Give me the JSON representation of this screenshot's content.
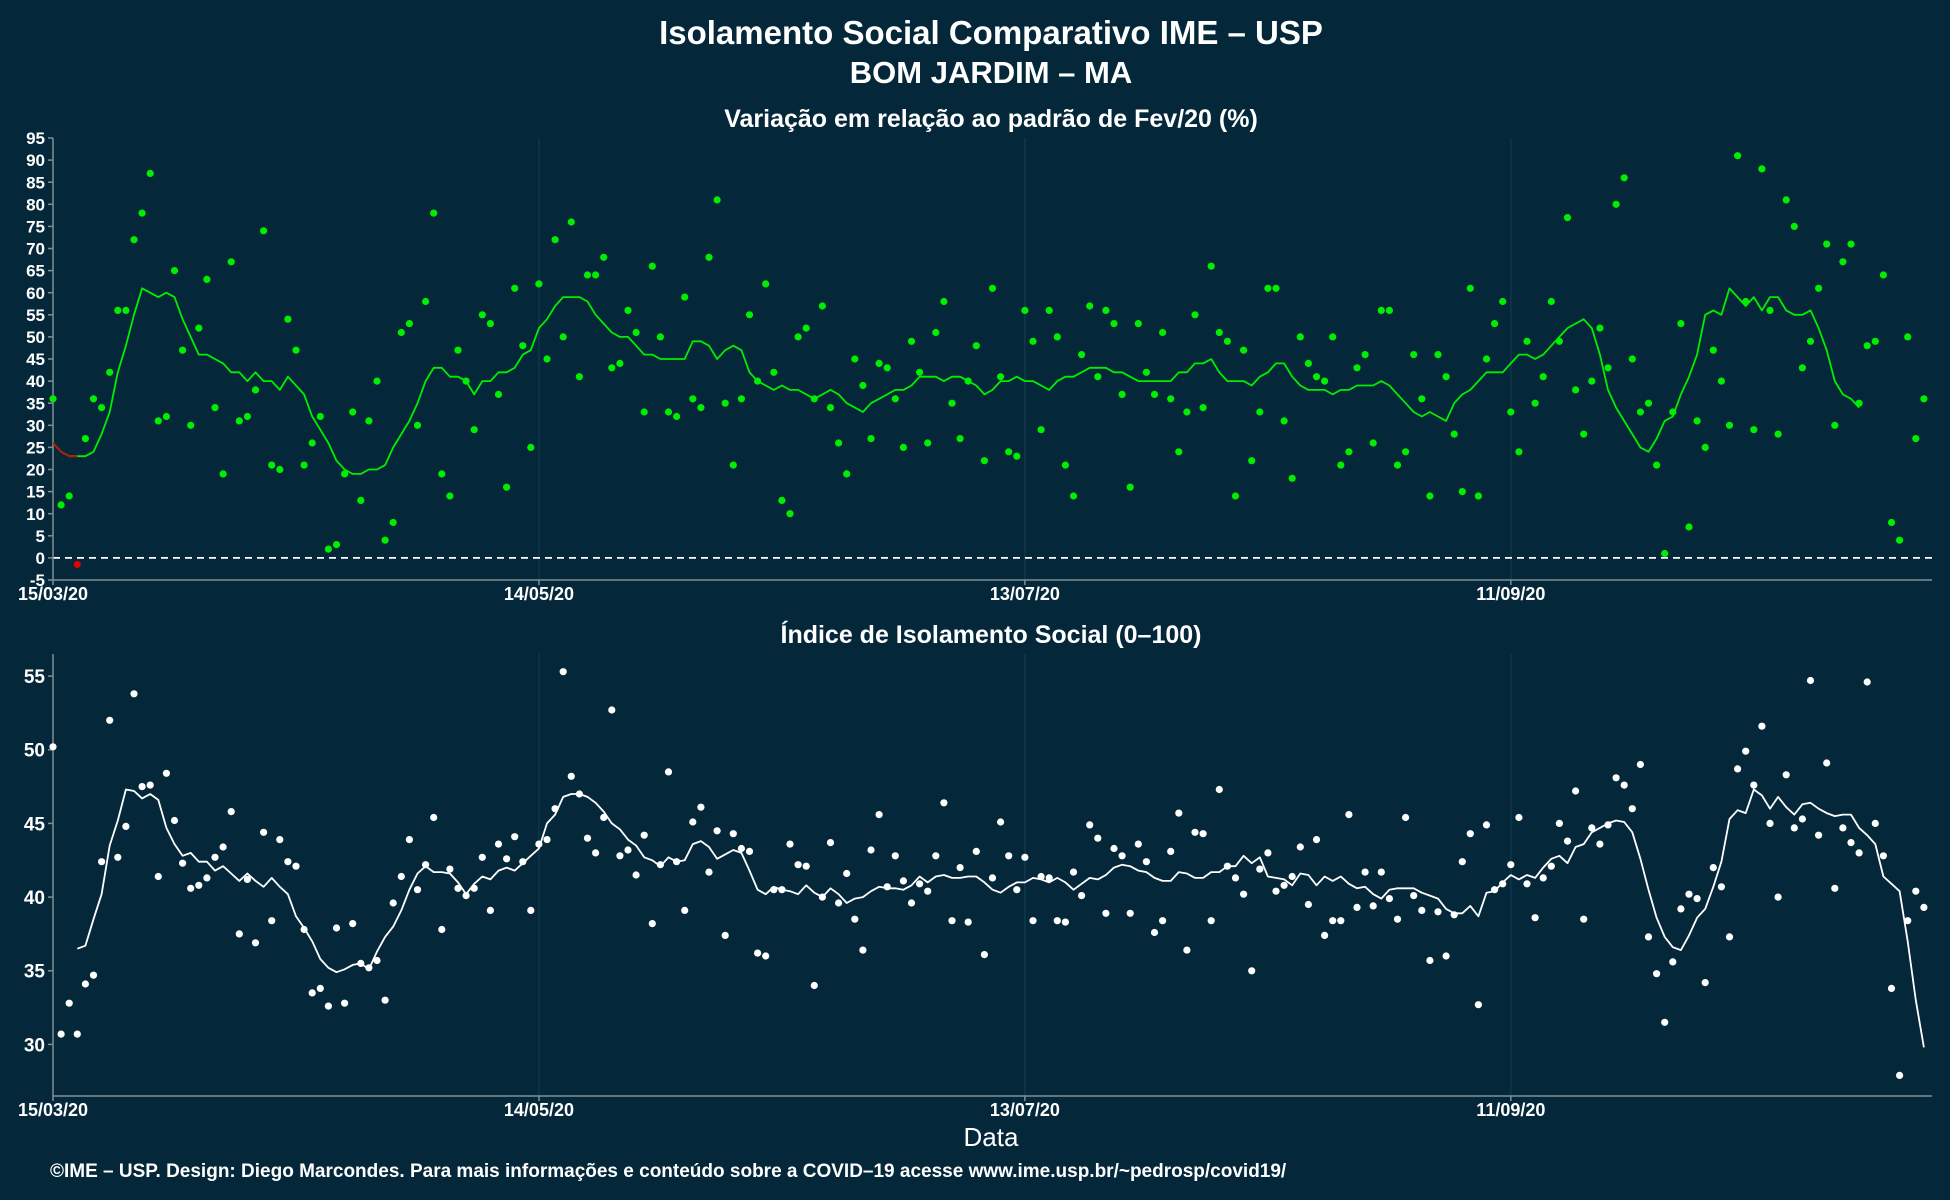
{
  "title_line1": "Isolamento Social Comparativo IME – USP",
  "title_line2": "BOM JARDIM – MA",
  "xlabel": "Data",
  "footer": "©IME – USP. Design: Diego Marcondes. Para mais informações e conteúdo sobre a COVID–19 acesse www.ime.usp.br/~pedrosp/covid19/",
  "colors": {
    "background": "#04283a",
    "green": "#00ee00",
    "red": "#e00000",
    "white": "#ffffff",
    "axis": "#7f8f96",
    "grid": "#123b4e"
  },
  "chart_data": [
    {
      "type": "scatter",
      "title": "Variação em relação ao padrão de Fev/20 (%)",
      "x_start": "15/03/20",
      "x_ticks": [
        "15/03/20",
        "14/05/20",
        "13/07/20",
        "11/09/20"
      ],
      "x_tick_days": [
        0,
        60,
        120,
        180
      ],
      "x_range_days": [
        0,
        232
      ],
      "ylim": [
        -5,
        95
      ],
      "y_ticks": [
        -5,
        0,
        5,
        10,
        15,
        20,
        25,
        30,
        35,
        40,
        45,
        50,
        55,
        60,
        65,
        70,
        75,
        80,
        85,
        90,
        95
      ],
      "reference_line": 0,
      "grid": true,
      "series": [
        {
          "kind": "points",
          "values": [
            36,
            12,
            14,
            -1.5,
            27,
            36,
            34,
            42,
            56,
            56,
            72,
            78,
            87,
            31,
            32,
            65,
            47,
            30,
            52,
            63,
            34,
            19,
            67,
            31,
            32,
            38,
            74,
            21,
            20,
            54,
            47,
            21,
            26,
            32,
            2,
            3,
            19,
            33,
            13,
            31,
            40,
            4,
            8,
            51,
            53,
            30,
            58,
            78,
            19,
            14,
            47,
            40,
            29,
            55,
            53,
            37,
            16,
            61,
            48,
            25,
            62,
            45,
            72,
            50,
            76,
            41,
            64,
            64,
            68,
            43,
            44,
            56,
            51,
            33,
            66,
            50,
            33,
            32,
            59,
            36,
            34,
            68,
            81,
            35,
            21,
            36,
            55,
            40,
            62,
            42,
            13,
            10,
            50,
            52,
            36,
            57,
            34,
            26,
            19,
            45,
            39,
            27,
            44,
            43,
            36,
            25,
            49,
            42,
            26,
            51,
            58,
            35,
            27,
            40,
            48,
            22,
            61,
            41,
            24,
            23,
            56,
            49,
            29,
            56,
            50,
            21,
            14,
            46,
            57,
            41,
            56,
            53,
            37,
            16,
            53,
            42,
            37,
            51,
            36,
            24,
            33,
            55,
            34,
            66,
            51,
            49,
            14,
            47,
            22,
            33,
            61,
            61,
            31,
            18,
            50,
            44,
            41,
            40,
            50,
            21,
            24,
            43,
            46,
            26,
            56,
            56,
            21,
            24,
            46,
            36,
            14,
            46,
            41,
            28,
            15,
            61,
            14,
            45,
            53,
            58,
            33,
            24,
            49,
            35,
            41,
            58,
            49,
            77,
            38,
            28,
            40,
            52,
            43,
            80,
            86,
            45,
            33,
            35,
            21,
            1,
            33,
            53,
            7,
            31,
            25,
            47,
            40,
            30,
            91,
            58,
            29,
            88,
            56,
            28,
            81,
            75,
            43,
            49,
            61,
            71,
            30,
            67,
            71,
            35,
            48,
            49,
            64,
            8,
            4,
            50,
            27,
            36
          ],
          "first_values_red": [
            -1.5
          ],
          "color": "#00ee00"
        },
        {
          "kind": "moving-average-line",
          "values": [
            26,
            24,
            23,
            23,
            23,
            24,
            28,
            33,
            42,
            48,
            55,
            61,
            60,
            59,
            60,
            59,
            54,
            50,
            46,
            46,
            45,
            44,
            42,
            42,
            40,
            42,
            40,
            40,
            38,
            41,
            39,
            37,
            32,
            29,
            26,
            22,
            20,
            19,
            19,
            20,
            20,
            21,
            25,
            28,
            31,
            35,
            40,
            43,
            43,
            41,
            41,
            40,
            37,
            40,
            40,
            42,
            42,
            43,
            46,
            47,
            52,
            54,
            57,
            59,
            59,
            59,
            58,
            55,
            53,
            51,
            50,
            50,
            48,
            46,
            46,
            45,
            45,
            45,
            45,
            49,
            49,
            48,
            45,
            47,
            48,
            47,
            42,
            40,
            39,
            38,
            39,
            38,
            38,
            37,
            36,
            37,
            38,
            37,
            35,
            34,
            33,
            35,
            36,
            37,
            38,
            38,
            39,
            41,
            41,
            41,
            40,
            41,
            41,
            40,
            39,
            37,
            38,
            40,
            40,
            41,
            40,
            40,
            39,
            38,
            40,
            41,
            41,
            42,
            43,
            43,
            43,
            42,
            42,
            41,
            40,
            40,
            40,
            40,
            40,
            42,
            42,
            44,
            44,
            45,
            42,
            40,
            40,
            40,
            39,
            41,
            42,
            44,
            44,
            41,
            39,
            38,
            38,
            38,
            37,
            38,
            38,
            39,
            39,
            39,
            40,
            39,
            37,
            35,
            33,
            32,
            33,
            32,
            31,
            35,
            37,
            38,
            40,
            42,
            42,
            42,
            44,
            46,
            46,
            45,
            46,
            48,
            50,
            52,
            53,
            54,
            52,
            46,
            38,
            34,
            31,
            28,
            25,
            24,
            27,
            31,
            32,
            37,
            41,
            46,
            55,
            56,
            55,
            61,
            59,
            57,
            59,
            56,
            59,
            59,
            56,
            55,
            55,
            56,
            52,
            47,
            40,
            37,
            36,
            34
          ],
          "color": "#00ee00"
        }
      ]
    },
    {
      "type": "scatter",
      "title": "Índice de Isolamento Social (0–100)",
      "x_ticks": [
        "15/03/20",
        "14/05/20",
        "13/07/20",
        "11/09/20"
      ],
      "x_tick_days": [
        0,
        60,
        120,
        180
      ],
      "x_range_days": [
        0,
        232
      ],
      "ylim": [
        26.5,
        56.5
      ],
      "y_ticks": [
        30,
        35,
        40,
        45,
        50,
        55
      ],
      "grid": true,
      "series": [
        {
          "kind": "points",
          "values": [
            50.2,
            30.7,
            32.8,
            30.7,
            34.1,
            34.7,
            42.4,
            52.0,
            42.7,
            44.8,
            53.8,
            47.5,
            47.6,
            41.4,
            48.4,
            45.2,
            42.3,
            40.6,
            40.8,
            41.3,
            42.7,
            43.4,
            45.8,
            37.5,
            41.2,
            36.9,
            44.4,
            38.4,
            43.9,
            42.4,
            42.1,
            37.8,
            33.5,
            33.8,
            32.6,
            37.9,
            32.8,
            38.2,
            35.5,
            35.2,
            35.7,
            33.0,
            39.6,
            41.4,
            43.9,
            40.5,
            42.2,
            45.4,
            37.8,
            41.9,
            40.6,
            40.1,
            40.6,
            42.7,
            39.1,
            43.6,
            42.6,
            44.1,
            42.4,
            39.1,
            43.6,
            43.9,
            46.0,
            55.3,
            48.2,
            47.0,
            44.0,
            43.0,
            45.4,
            52.7,
            42.8,
            43.2,
            41.5,
            44.2,
            38.2,
            42.2,
            48.5,
            42.4,
            39.1,
            45.1,
            46.1,
            41.7,
            44.5,
            37.4,
            44.3,
            43.3,
            43.1,
            36.2,
            36.0,
            40.5,
            40.5,
            43.6,
            42.2,
            42.1,
            34.0,
            40.0,
            43.7,
            39.6,
            41.6,
            38.5,
            36.4,
            43.2,
            45.6,
            40.7,
            42.8,
            41.1,
            39.6,
            40.9,
            40.4,
            42.8,
            46.4,
            38.4,
            42.0,
            38.3,
            43.1,
            36.1,
            41.3,
            45.1,
            42.8,
            40.5,
            42.7,
            38.4,
            41.4,
            41.3,
            38.4,
            38.3,
            41.7,
            40.1,
            44.9,
            44.0,
            38.9,
            43.3,
            42.8,
            38.9,
            43.6,
            42.4,
            37.6,
            38.4,
            43.1,
            45.7,
            36.4,
            44.4,
            44.3,
            38.4,
            47.3,
            42.1,
            41.3,
            40.2,
            35.0,
            41.9,
            43.0,
            40.4,
            40.8,
            41.4,
            43.4,
            39.5,
            43.9,
            37.4,
            38.4,
            38.4,
            45.6,
            39.3,
            41.7,
            39.4,
            41.7,
            39.9,
            38.5,
            45.4,
            40.1,
            39.1,
            35.7,
            39.0,
            36.0,
            38.8,
            42.4,
            44.3,
            32.7,
            44.9,
            40.5,
            40.9,
            42.2,
            45.4,
            40.9,
            38.6,
            41.3,
            42.1,
            45.0,
            43.8,
            47.2,
            38.5,
            44.7,
            43.6,
            44.9,
            48.1,
            47.6,
            46.0,
            49.0,
            37.3,
            34.8,
            31.5,
            35.6,
            39.2,
            40.2,
            39.9,
            34.2,
            42.0,
            40.7,
            37.3,
            48.7,
            49.9,
            47.6,
            51.6,
            45.0,
            40.0,
            48.3,
            44.7,
            45.3,
            54.7,
            44.2,
            49.1,
            40.6,
            44.7,
            43.7,
            43.0,
            54.6,
            45.0,
            42.8,
            33.8,
            27.9,
            38.4,
            40.4,
            39.3
          ],
          "color": "#ffffff"
        },
        {
          "kind": "moving-average-line",
          "values": [
            36.5,
            36.7,
            38.5,
            40.2,
            43.5,
            45.2,
            47.3,
            47.2,
            46.7,
            47.0,
            46.6,
            44.7,
            43.6,
            42.8,
            43.0,
            42.4,
            42.4,
            41.8,
            42.1,
            41.6,
            41.1,
            41.6,
            41.1,
            40.7,
            41.3,
            40.7,
            40.2,
            38.7,
            37.9,
            37.0,
            35.8,
            35.2,
            34.9,
            35.1,
            35.4,
            35.5,
            35.1,
            36.3,
            37.3,
            38.0,
            39.1,
            40.5,
            41.6,
            42.1,
            41.7,
            41.7,
            41.6,
            41.0,
            40.2,
            40.9,
            41.4,
            41.2,
            41.8,
            42.0,
            41.8,
            42.3,
            42.8,
            43.3,
            45.0,
            45.6,
            46.8,
            47.0,
            47.0,
            46.8,
            46.4,
            45.8,
            45.0,
            44.6,
            43.9,
            43.5,
            42.7,
            42.5,
            42.1,
            42.7,
            42.4,
            42.5,
            43.6,
            43.8,
            43.4,
            42.6,
            42.9,
            43.2,
            43.0,
            41.8,
            40.5,
            40.2,
            40.7,
            40.5,
            40.4,
            40.2,
            40.8,
            40.3,
            40.0,
            40.6,
            40.2,
            39.6,
            39.9,
            40.0,
            40.4,
            40.7,
            40.6,
            40.6,
            40.5,
            40.8,
            41.4,
            41.0,
            41.4,
            41.5,
            41.3,
            41.3,
            41.4,
            41.4,
            41.0,
            40.5,
            40.3,
            40.7,
            41.0,
            41.0,
            41.3,
            41.2,
            41.0,
            41.3,
            41.0,
            40.5,
            40.9,
            41.3,
            41.2,
            41.5,
            42.0,
            42.2,
            42.1,
            41.8,
            41.7,
            41.3,
            41.1,
            41.1,
            41.7,
            41.6,
            41.3,
            41.3,
            41.7,
            41.7,
            42.1,
            42.1,
            42.8,
            42.3,
            42.7,
            41.4,
            41.3,
            41.2,
            40.8,
            41.6,
            41.5,
            40.8,
            41.4,
            41.1,
            41.4,
            40.9,
            40.6,
            40.7,
            40.2,
            39.9,
            40.5,
            40.6,
            40.6,
            40.6,
            40.3,
            40.1,
            39.9,
            39.2,
            38.9,
            38.9,
            39.4,
            38.7,
            40.3,
            40.4,
            41.0,
            41.5,
            41.2,
            41.5,
            41.3,
            42.0,
            42.6,
            42.8,
            42.3,
            43.4,
            43.6,
            44.4,
            44.7,
            45.0,
            45.2,
            45.1,
            44.4,
            42.6,
            40.5,
            38.6,
            37.3,
            36.6,
            36.4,
            37.4,
            38.6,
            39.2,
            40.7,
            42.4,
            45.3,
            45.9,
            45.7,
            47.3,
            46.9,
            46.0,
            46.8,
            46.1,
            45.6,
            46.3,
            46.4,
            46.0,
            45.7,
            45.5,
            45.6,
            45.6,
            44.7,
            44.2,
            43.6,
            41.4,
            40.9,
            40.4,
            37.0,
            33.0,
            29.8
          ],
          "color": "#ffffff"
        }
      ]
    }
  ]
}
